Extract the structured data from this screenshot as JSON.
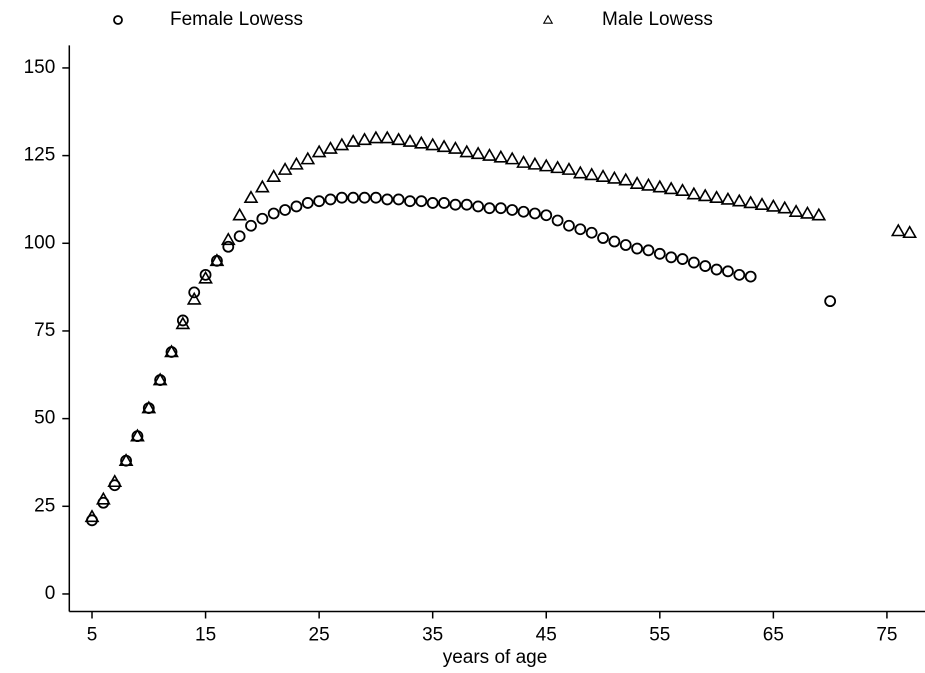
{
  "chart_data": {
    "type": "scatter",
    "x_label": "years of age",
    "xlim": [
      3,
      78
    ],
    "xticks": [
      5,
      15,
      25,
      35,
      45,
      55,
      65,
      75
    ],
    "ylim": [
      -5,
      155
    ],
    "yticks": [
      0,
      25,
      50,
      75,
      100,
      125,
      150
    ],
    "grid": false,
    "legend": "top",
    "series": [
      {
        "name": "Female Lowess",
        "color": "#000000",
        "marker": "circle",
        "x": [
          5,
          6,
          7,
          8,
          9,
          10,
          11,
          12,
          13,
          14,
          15,
          16,
          17,
          18,
          19,
          20,
          21,
          22,
          23,
          24,
          25,
          26,
          27,
          28,
          29,
          30,
          31,
          32,
          33,
          34,
          35,
          36,
          37,
          38,
          39,
          40,
          41,
          42,
          43,
          44,
          45,
          46,
          47,
          48,
          49,
          50,
          51,
          52,
          53,
          54,
          55,
          56,
          57,
          58,
          59,
          60,
          61,
          62,
          63,
          70
        ],
        "values": [
          21,
          26,
          31,
          38,
          45,
          53,
          61,
          69,
          78,
          86,
          91,
          95,
          99,
          102,
          105,
          107,
          108.5,
          109.5,
          110.5,
          111.5,
          112,
          112.5,
          113,
          113,
          113,
          113,
          112.5,
          112.5,
          112,
          112,
          111.5,
          111.5,
          111,
          111,
          110.5,
          110,
          110,
          109.5,
          109,
          108.5,
          108,
          106.5,
          105,
          104,
          103,
          101.5,
          100.5,
          99.5,
          98.5,
          98,
          97,
          96,
          95.5,
          94.5,
          93.5,
          92.5,
          92,
          91,
          90.5,
          83.5
        ]
      },
      {
        "name": "Male Lowess",
        "color": "#000000",
        "marker": "triangle",
        "x": [
          5,
          6,
          7,
          8,
          9,
          10,
          11,
          12,
          13,
          14,
          15,
          16,
          17,
          18,
          19,
          20,
          21,
          22,
          23,
          24,
          25,
          26,
          27,
          28,
          29,
          30,
          31,
          32,
          33,
          34,
          35,
          36,
          37,
          38,
          39,
          40,
          41,
          42,
          43,
          44,
          45,
          46,
          47,
          48,
          49,
          50,
          51,
          52,
          53,
          54,
          55,
          56,
          57,
          58,
          59,
          60,
          61,
          62,
          63,
          64,
          65,
          66,
          67,
          68,
          69,
          76,
          77
        ],
        "values": [
          22,
          27,
          32,
          38,
          45,
          53,
          61,
          69,
          77,
          84,
          90,
          95,
          101,
          108,
          113,
          116,
          119,
          121,
          122.5,
          124,
          126,
          127,
          128,
          129,
          129.5,
          130,
          130,
          129.5,
          129,
          128.5,
          128,
          127.5,
          127,
          126,
          125.5,
          125,
          124.5,
          124,
          123,
          122.5,
          122,
          121.5,
          121,
          120,
          119.5,
          119,
          118.5,
          118,
          117,
          116.5,
          116,
          115.5,
          115,
          114,
          113.5,
          113,
          112.5,
          112,
          111.5,
          111,
          110.5,
          110,
          109,
          108.5,
          108,
          103.5,
          103
        ]
      }
    ]
  }
}
